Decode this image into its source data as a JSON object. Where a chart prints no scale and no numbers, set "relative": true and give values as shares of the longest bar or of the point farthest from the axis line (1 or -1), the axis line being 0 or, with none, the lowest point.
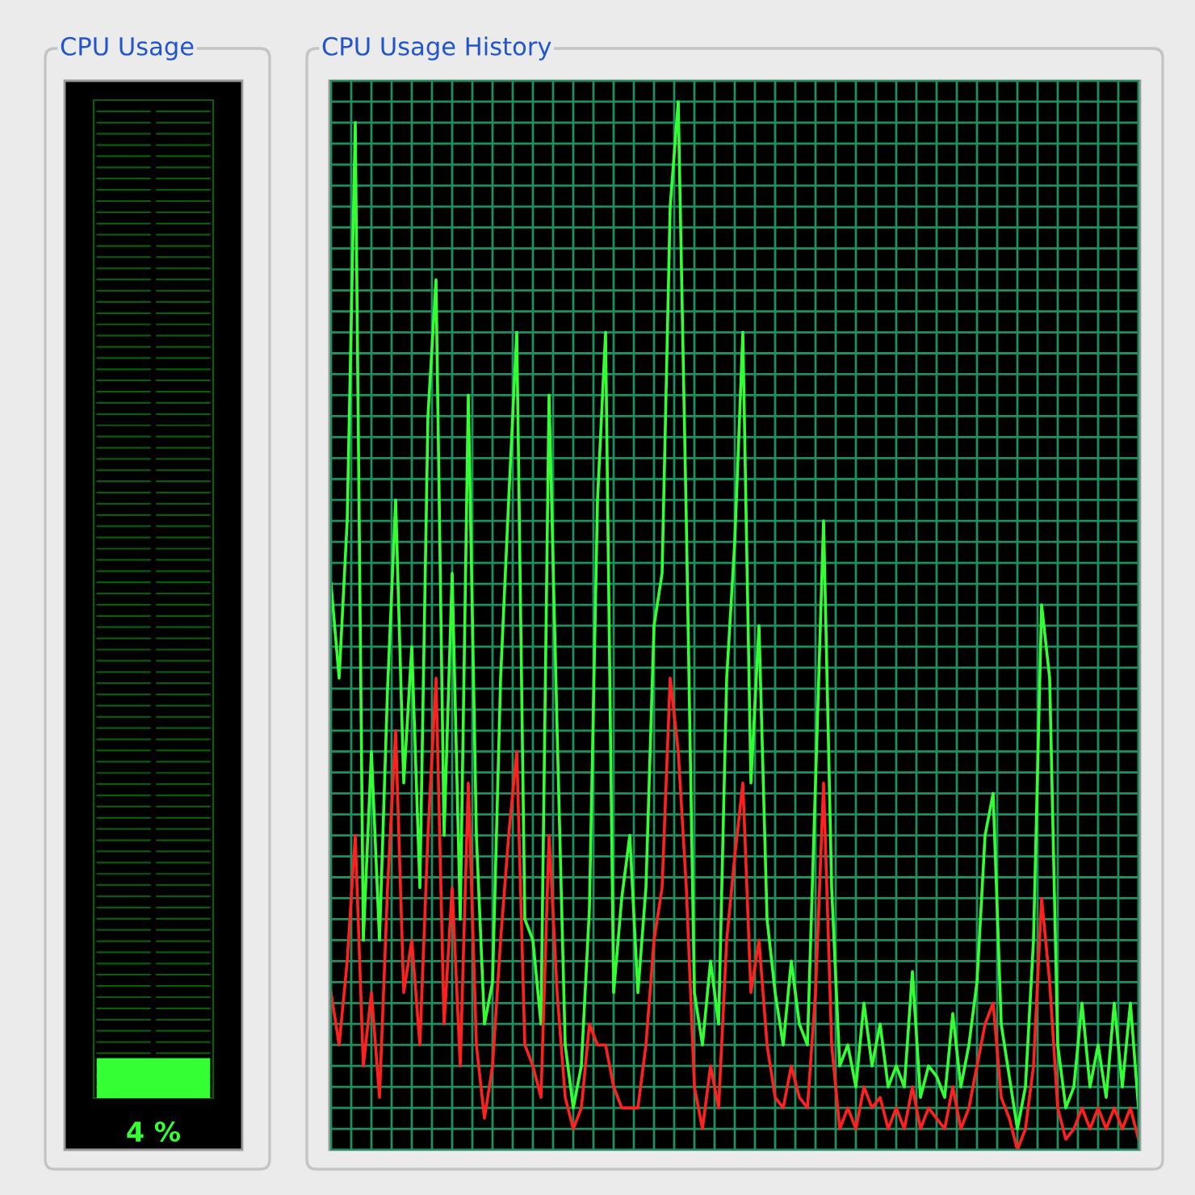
{
  "chart_data": [
    {
      "type": "bar",
      "title": "CPU Usage",
      "categories": [
        null
      ],
      "values": [
        4
      ],
      "value_labels": [
        "4 %"
      ],
      "color": "#33ff33",
      "ylim": [
        0,
        100
      ],
      "tick_labels": false,
      "grid": false
    },
    {
      "type": "line",
      "title": "CPU Usage History",
      "relative": true,
      "grid": true,
      "tick_labels": false,
      "categories": [
        null,
        null,
        null,
        null,
        null,
        null,
        null,
        null,
        null,
        null,
        null,
        null,
        null,
        null,
        null,
        null,
        null,
        null,
        null,
        null,
        null,
        null,
        null,
        null,
        null,
        null,
        null,
        null,
        null,
        null,
        null,
        null,
        null,
        null,
        null,
        null,
        null,
        null,
        null,
        null,
        null,
        null,
        null,
        null,
        null,
        null,
        null,
        null,
        null,
        null,
        null,
        null,
        null,
        null,
        null,
        null,
        null,
        null,
        null,
        null,
        null,
        null,
        null,
        null,
        null,
        null,
        null,
        null,
        null,
        null,
        null,
        null,
        null,
        null,
        null,
        null,
        null,
        null,
        null,
        null,
        null,
        null,
        null,
        null,
        null,
        null,
        null,
        null,
        null,
        null,
        null,
        null,
        null,
        null,
        null,
        null,
        null,
        null,
        null,
        null,
        null
      ],
      "series": [
        {
          "color": "#33ff33",
          "values": [
            0.54,
            0.45,
            0.6,
            0.98,
            0.2,
            0.38,
            0.2,
            0.44,
            0.62,
            0.35,
            0.48,
            0.25,
            0.7,
            0.83,
            0.3,
            0.55,
            0.22,
            0.72,
            0.3,
            0.12,
            0.16,
            0.45,
            0.62,
            0.78,
            0.22,
            0.2,
            0.12,
            0.72,
            0.4,
            0.1,
            0.04,
            0.08,
            0.23,
            0.62,
            0.78,
            0.15,
            0.24,
            0.3,
            0.15,
            0.25,
            0.5,
            0.55,
            0.9,
            1.0,
            0.6,
            0.15,
            0.1,
            0.18,
            0.12,
            0.45,
            0.58,
            0.78,
            0.35,
            0.5,
            0.22,
            0.15,
            0.1,
            0.18,
            0.12,
            0.1,
            0.35,
            0.6,
            0.25,
            0.08,
            0.1,
            0.06,
            0.14,
            0.08,
            0.12,
            0.06,
            0.08,
            0.06,
            0.17,
            0.05,
            0.08,
            0.07,
            0.05,
            0.13,
            0.06,
            0.1,
            0.16,
            0.3,
            0.34,
            0.12,
            0.07,
            0.02,
            0.06,
            0.2,
            0.52,
            0.45,
            0.1,
            0.04,
            0.06,
            0.14,
            0.06,
            0.1,
            0.05,
            0.14,
            0.06,
            0.14,
            0.04
          ]
        },
        {
          "color": "#ff2020",
          "values": [
            0.15,
            0.1,
            0.18,
            0.3,
            0.08,
            0.15,
            0.05,
            0.25,
            0.4,
            0.15,
            0.2,
            0.1,
            0.3,
            0.45,
            0.12,
            0.25,
            0.08,
            0.35,
            0.1,
            0.03,
            0.08,
            0.2,
            0.3,
            0.38,
            0.1,
            0.08,
            0.05,
            0.3,
            0.15,
            0.05,
            0.02,
            0.04,
            0.12,
            0.1,
            0.1,
            0.06,
            0.04,
            0.04,
            0.04,
            0.1,
            0.2,
            0.25,
            0.45,
            0.38,
            0.25,
            0.06,
            0.02,
            0.08,
            0.04,
            0.2,
            0.28,
            0.35,
            0.15,
            0.2,
            0.1,
            0.05,
            0.04,
            0.08,
            0.05,
            0.04,
            0.15,
            0.35,
            0.1,
            0.02,
            0.04,
            0.02,
            0.06,
            0.04,
            0.05,
            0.02,
            0.04,
            0.02,
            0.06,
            0.02,
            0.04,
            0.03,
            0.02,
            0.06,
            0.02,
            0.04,
            0.08,
            0.12,
            0.14,
            0.05,
            0.03,
            0.0,
            0.02,
            0.08,
            0.24,
            0.16,
            0.04,
            0.01,
            0.02,
            0.04,
            0.02,
            0.04,
            0.02,
            0.04,
            0.02,
            0.04,
            0.01
          ]
        }
      ]
    }
  ]
}
